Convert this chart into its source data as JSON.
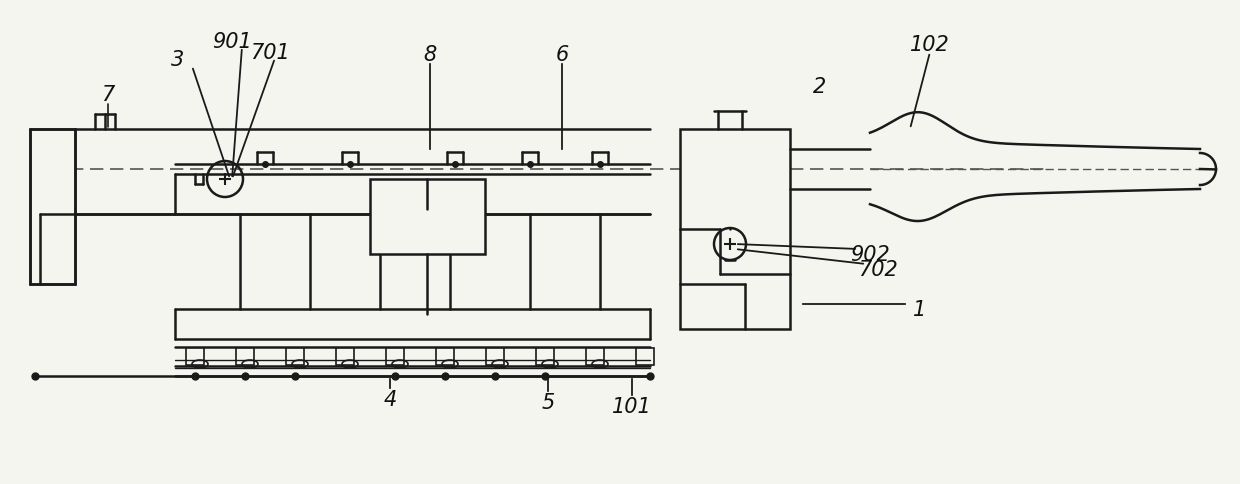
{
  "bg_color": "#f5f5f0",
  "line_color": "#1a1a1a",
  "dash_color": "#555555",
  "label_color": "#111111",
  "figsize": [
    12.4,
    4.85
  ],
  "dpi": 100
}
